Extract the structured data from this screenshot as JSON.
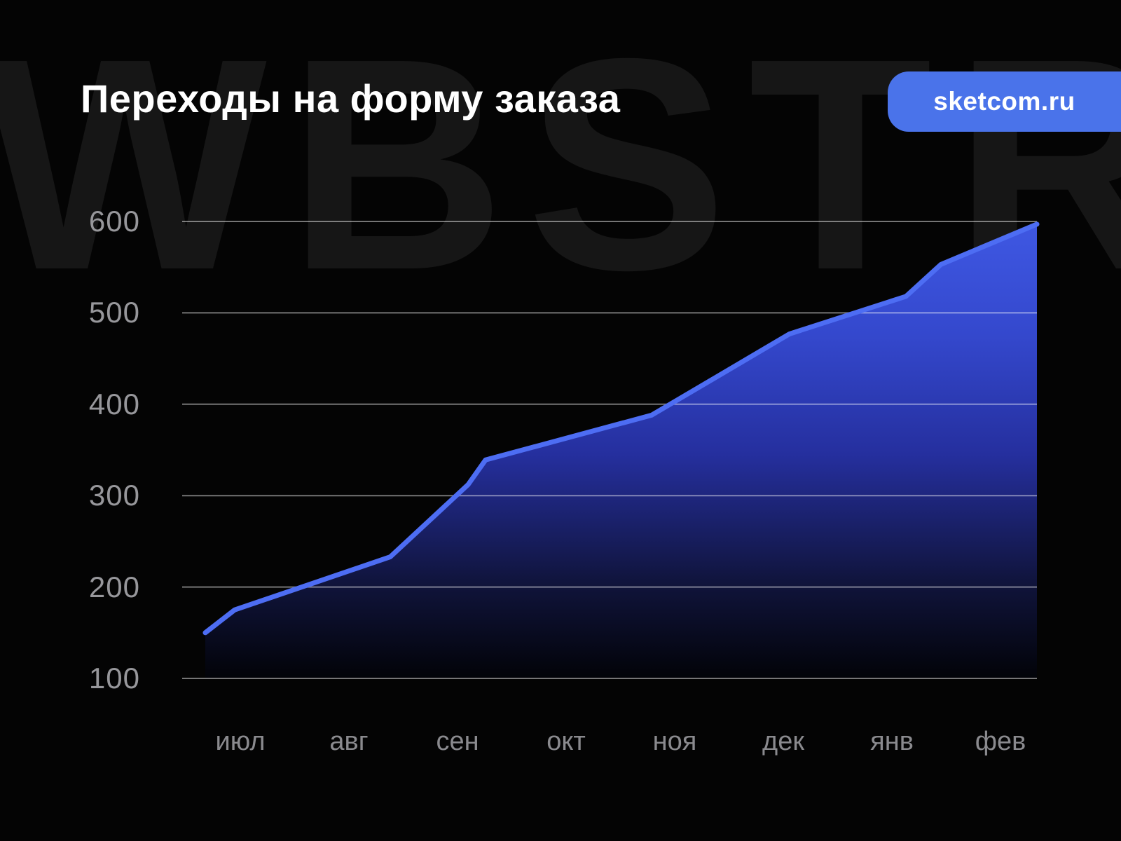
{
  "page": {
    "watermark": "WBSTR",
    "badge": {
      "label": "sketcom.ru",
      "color": "#4a73ea"
    },
    "background_color": "#040404",
    "watermark_color": "#161616"
  },
  "chart_data": {
    "type": "area",
    "title": "Переходы на форму заказа",
    "categories": [
      "июл",
      "авг",
      "сен",
      "окт",
      "ноя",
      "дек",
      "янв",
      "фев"
    ],
    "values": [
      175,
      218,
      300,
      363,
      403,
      473,
      513,
      580
    ],
    "series": [
      {
        "name": "Переходы на форму заказа",
        "values": [
          175,
          218,
          300,
          363,
          403,
          473,
          513,
          580
        ]
      }
    ],
    "polyline": [
      [
        293,
        150
      ],
      [
        335,
        175
      ],
      [
        557,
        233
      ],
      [
        668,
        312
      ],
      [
        693,
        339
      ],
      [
        930,
        388
      ],
      [
        1127,
        477
      ],
      [
        1293,
        518
      ],
      [
        1343,
        553
      ],
      [
        1480,
        597
      ]
    ],
    "y_ticks": [
      600,
      500,
      400,
      300,
      200,
      100
    ],
    "ylim": [
      100,
      650
    ],
    "xlabel": "",
    "ylabel": "",
    "grid": true,
    "legend_position": "none",
    "line_color": "#4d6df3",
    "grid_color": "rgba(255,255,255,0.45)",
    "fill_gradient_stops": [
      [
        0.0,
        "#3f58e3"
      ],
      [
        0.25,
        "#3448cd"
      ],
      [
        0.51,
        "#252f9e"
      ],
      [
        0.79,
        "#10143c"
      ],
      [
        1.0,
        "#020308"
      ]
    ]
  }
}
